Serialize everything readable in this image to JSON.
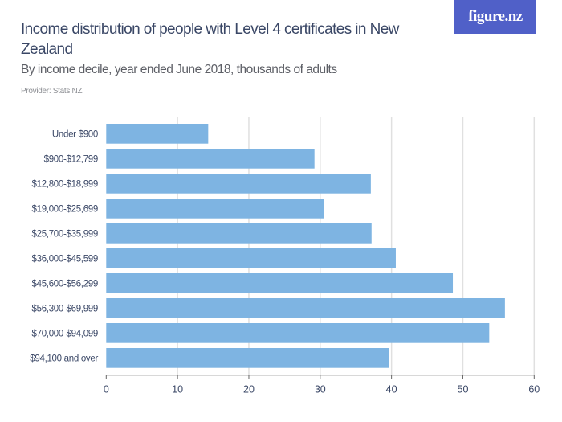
{
  "header": {
    "title": "Income distribution of people with Level 4 certificates in New Zealand",
    "subtitle": "By income decile, year ended June 2018, thousands of adults",
    "provider": "Provider: Stats NZ",
    "logo": "figure.nz"
  },
  "colors": {
    "bar": "#7eb4e2",
    "grid": "#e0e0e0",
    "axis": "#666666",
    "text": "#3a4766",
    "logo_bg": "#5060c8"
  },
  "chart_data": {
    "type": "bar",
    "orientation": "horizontal",
    "title": "Income distribution of people with Level 4 certificates in New Zealand",
    "subtitle": "By income decile, year ended June 2018, thousands of adults",
    "categories": [
      "Under $900",
      "$900-$12,799",
      "$12,800-$18,999",
      "$19,000-$25,699",
      "$25,700-$35,999",
      "$36,000-$45,599",
      "$45,600-$56,299",
      "$56,300-$69,999",
      "$70,000-$94,099",
      "$94,100 and over"
    ],
    "values": [
      14.3,
      29.2,
      37.1,
      30.5,
      37.2,
      40.6,
      48.6,
      55.9,
      53.7,
      39.7
    ],
    "xlim": [
      0,
      60
    ],
    "xticks": [
      "0",
      "10",
      "20",
      "30",
      "40",
      "50",
      "60"
    ],
    "grid": true,
    "legend": "none"
  }
}
